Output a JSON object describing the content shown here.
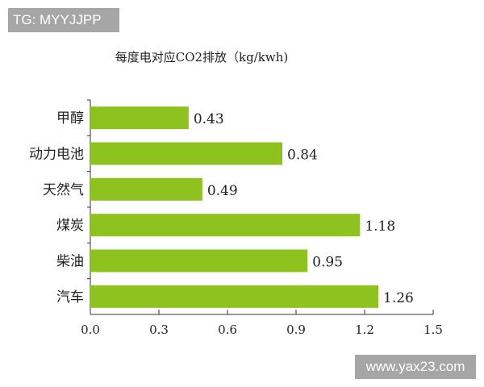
{
  "watermarks": {
    "top_left": "TG: MYYJJPP",
    "bottom_right": "www.yax23.com"
  },
  "chart_data": {
    "type": "bar",
    "orientation": "horizontal",
    "title": "每度电对应CO2排放（kg/kwh)",
    "categories": [
      "甲醇",
      "动力电池",
      "天然气",
      "煤炭",
      "柴油",
      "汽车"
    ],
    "values": [
      0.43,
      0.84,
      0.49,
      1.18,
      0.95,
      1.26
    ],
    "data_labels": [
      "0.43",
      "0.84",
      "0.49",
      "1.18",
      "0.95",
      "1.26"
    ],
    "xlim": [
      0,
      1.5
    ],
    "xticks": [
      "0.0",
      "0.3",
      "0.6",
      "0.9",
      "1.2",
      "1.5"
    ],
    "bar_color": "#8dc21f",
    "grid": false
  }
}
